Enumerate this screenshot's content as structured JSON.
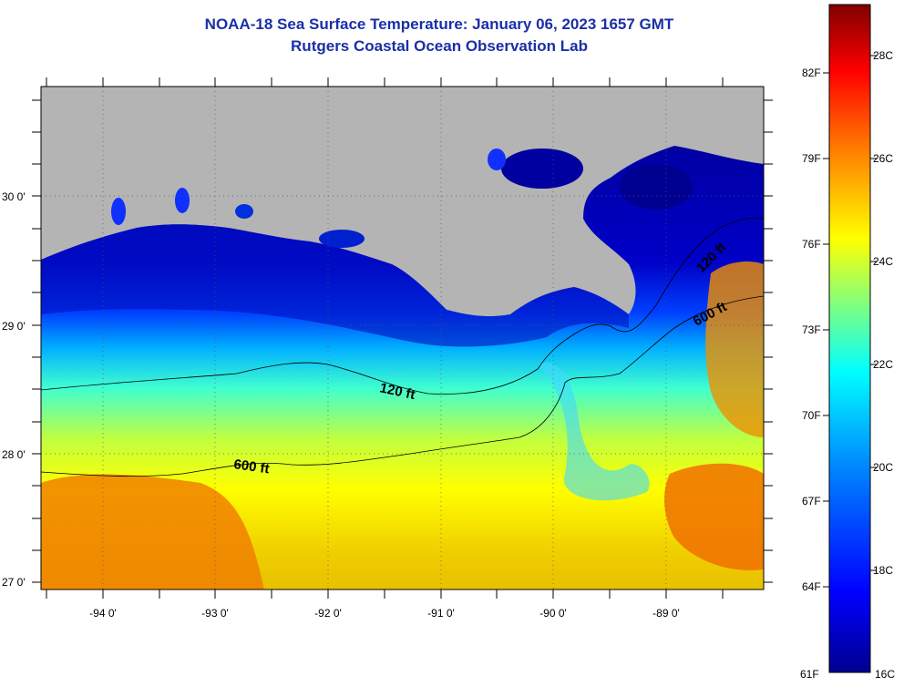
{
  "title": {
    "line1": "NOAA-18 Sea Surface Temperature:  January 06, 2023 1657 GMT",
    "line2": "Rutgers Coastal Ocean Observation Lab"
  },
  "map": {
    "lat_labels": [
      "30 0'",
      "29 0'",
      "28 0'",
      "27 0'"
    ],
    "lon_labels": [
      "-94 0'",
      "-93 0'",
      "-92 0'",
      "-91 0'",
      "-90 0'",
      "-89 0'"
    ],
    "contour_labels": {
      "c120_west": "120 ft",
      "c120_east": "120 ft",
      "c600_west": "600 ft",
      "c600_east": "600 ft"
    },
    "land_color": "#b4b4b4"
  },
  "colorbar": {
    "fahrenheit": [
      "82F",
      "79F",
      "76F",
      "73F",
      "70F",
      "67F",
      "64F",
      "61F"
    ],
    "celsius": [
      "28C",
      "26C",
      "24C",
      "22C",
      "20C",
      "18C",
      "16C"
    ],
    "colors": [
      "#00008f",
      "#0000ff",
      "#0080ff",
      "#00ffff",
      "#80ff80",
      "#ffff00",
      "#ff8000",
      "#ff0000",
      "#800000"
    ]
  }
}
